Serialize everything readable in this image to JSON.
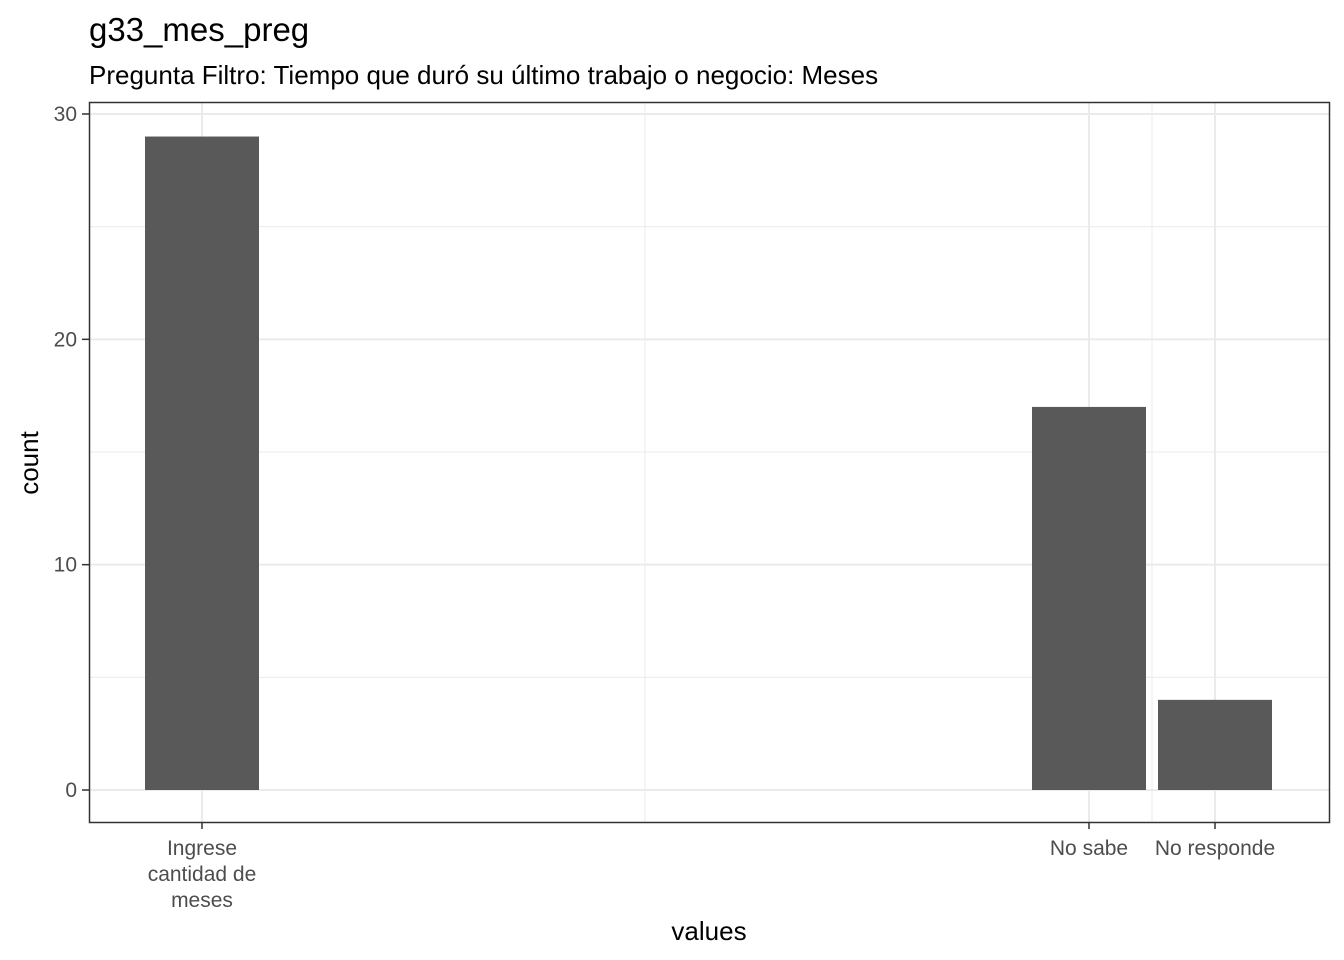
{
  "chart_data": {
    "type": "bar",
    "title": "g33_mes_preg",
    "subtitle": "Pregunta Filtro: Tiempo que duró su último trabajo o negocio: Meses",
    "xlabel": "values",
    "ylabel": "count",
    "categories": [
      {
        "label": "Ingrese cantidad de meses",
        "lines": [
          "Ingrese",
          "cantidad de",
          "meses"
        ],
        "value": 29
      },
      {
        "label": "No sabe",
        "lines": [
          "No sabe"
        ],
        "value": 17
      },
      {
        "label": "No responde",
        "lines": [
          "No responde"
        ],
        "value": 4
      }
    ],
    "yticks": [
      0,
      10,
      20,
      30
    ],
    "ylim": [
      -1.45,
      30.45
    ],
    "grid": true,
    "bar_color": "#595959",
    "grid_color": "#ebebeb",
    "panel_border_color": "#333333"
  }
}
